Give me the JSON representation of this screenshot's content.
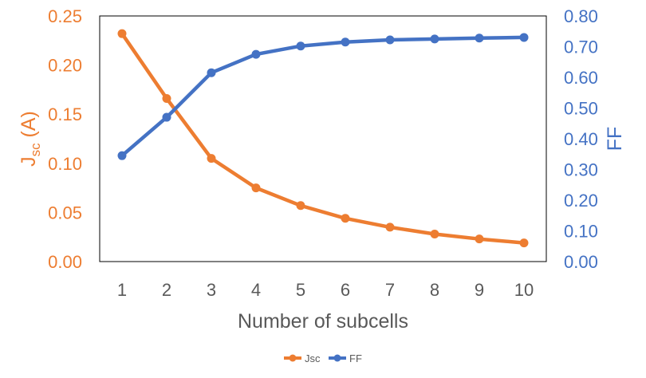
{
  "chart_data": {
    "type": "line",
    "categories": [
      "1",
      "2",
      "3",
      "4",
      "5",
      "6",
      "7",
      "8",
      "9",
      "10"
    ],
    "xlabel": "Number of subcells",
    "ylabel_left": {
      "main": "J",
      "sub": "sc",
      "suffix": " (A)"
    },
    "ylabel_right": "FF",
    "ylim_left": [
      0,
      0.25
    ],
    "ylim_right": [
      0,
      0.8
    ],
    "yticks_left": [
      "0.00",
      "0.05",
      "0.10",
      "0.15",
      "0.20",
      "0.25"
    ],
    "yticks_right": [
      "0.00",
      "0.10",
      "0.20",
      "0.30",
      "0.40",
      "0.50",
      "0.60",
      "0.70",
      "0.80"
    ],
    "grid": false,
    "legend_position": "bottom",
    "series": [
      {
        "name": "Jsc",
        "axis": "left",
        "color": "#ED7D31",
        "values": [
          0.232,
          0.166,
          0.105,
          0.075,
          0.057,
          0.044,
          0.035,
          0.028,
          0.023,
          0.019
        ]
      },
      {
        "name": "FF",
        "axis": "right",
        "color": "#4472C4",
        "values": [
          0.345,
          0.47,
          0.615,
          0.675,
          0.702,
          0.715,
          0.722,
          0.725,
          0.728,
          0.73
        ]
      }
    ],
    "colors": {
      "left_axis_text": "#ED7D31",
      "right_axis_text": "#4472C4",
      "x_axis_text": "#595959"
    }
  }
}
